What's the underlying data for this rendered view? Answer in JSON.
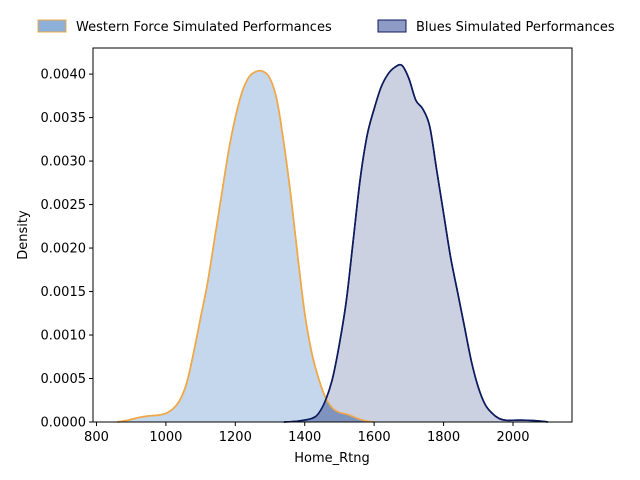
{
  "chart_data": {
    "type": "area",
    "title": "",
    "xlabel": "Home_Rtng",
    "ylabel": "Density",
    "xlim": [
      790,
      2170
    ],
    "ylim": [
      0,
      0.0043
    ],
    "xticks": [
      800,
      1000,
      1200,
      1400,
      1600,
      1800,
      2000
    ],
    "yticks": [
      0.0,
      0.0005,
      0.001,
      0.0015,
      0.002,
      0.0025,
      0.003,
      0.0035,
      0.004
    ],
    "ytick_labels": [
      "0.0000",
      "0.0005",
      "0.0010",
      "0.0015",
      "0.0020",
      "0.0025",
      "0.0030",
      "0.0035",
      "0.0040"
    ],
    "grid": false,
    "legend_position": "top",
    "series": [
      {
        "name": "Western Force Simulated Performances",
        "fill_color": "#c5d7ec",
        "legend_fill": "#8db0d9",
        "line_color": "#f0a847",
        "points": [
          [
            860,
            0.0
          ],
          [
            890,
            2e-05
          ],
          [
            920,
            5e-05
          ],
          [
            950,
            7e-05
          ],
          [
            980,
            8e-05
          ],
          [
            1000,
            0.0001
          ],
          [
            1020,
            0.00015
          ],
          [
            1040,
            0.00025
          ],
          [
            1060,
            0.00045
          ],
          [
            1080,
            0.0008
          ],
          [
            1100,
            0.0012
          ],
          [
            1120,
            0.0016
          ],
          [
            1140,
            0.0021
          ],
          [
            1160,
            0.0026
          ],
          [
            1180,
            0.0031
          ],
          [
            1200,
            0.0035
          ],
          [
            1220,
            0.0038
          ],
          [
            1240,
            0.00397
          ],
          [
            1260,
            0.00403
          ],
          [
            1280,
            0.00403
          ],
          [
            1300,
            0.00395
          ],
          [
            1320,
            0.0037
          ],
          [
            1340,
            0.0032
          ],
          [
            1360,
            0.0026
          ],
          [
            1380,
            0.0019
          ],
          [
            1400,
            0.00125
          ],
          [
            1420,
            0.0008
          ],
          [
            1440,
            0.0005
          ],
          [
            1460,
            0.00028
          ],
          [
            1480,
            0.00016
          ],
          [
            1500,
            0.00011
          ],
          [
            1520,
            9e-05
          ],
          [
            1540,
            6e-05
          ],
          [
            1560,
            3e-05
          ],
          [
            1580,
            1e-05
          ],
          [
            1600,
            0.0
          ]
        ]
      },
      {
        "name": "Blues Simulated Performances",
        "fill_color": "#c8cde0",
        "legend_fill": "#8e9bc5",
        "line_color": "#0d1b5e",
        "points": [
          [
            1340,
            0.0
          ],
          [
            1380,
            1e-05
          ],
          [
            1420,
            4e-05
          ],
          [
            1440,
            0.0001
          ],
          [
            1460,
            0.00025
          ],
          [
            1480,
            0.0005
          ],
          [
            1500,
            0.0009
          ],
          [
            1520,
            0.0014
          ],
          [
            1540,
            0.0021
          ],
          [
            1560,
            0.0028
          ],
          [
            1580,
            0.0033
          ],
          [
            1600,
            0.0036
          ],
          [
            1620,
            0.00385
          ],
          [
            1640,
            0.004
          ],
          [
            1660,
            0.00408
          ],
          [
            1680,
            0.0041
          ],
          [
            1700,
            0.00395
          ],
          [
            1720,
            0.0037
          ],
          [
            1740,
            0.0036
          ],
          [
            1760,
            0.0034
          ],
          [
            1780,
            0.0029
          ],
          [
            1800,
            0.0024
          ],
          [
            1820,
            0.0019
          ],
          [
            1840,
            0.0015
          ],
          [
            1860,
            0.0011
          ],
          [
            1880,
            0.0007
          ],
          [
            1900,
            0.0004
          ],
          [
            1920,
            0.0002
          ],
          [
            1940,
            0.0001
          ],
          [
            1960,
            4e-05
          ],
          [
            1980,
            2e-05
          ],
          [
            2000,
            2e-05
          ],
          [
            2040,
            2e-05
          ],
          [
            2080,
            1e-05
          ],
          [
            2100,
            0.0
          ]
        ]
      }
    ]
  }
}
